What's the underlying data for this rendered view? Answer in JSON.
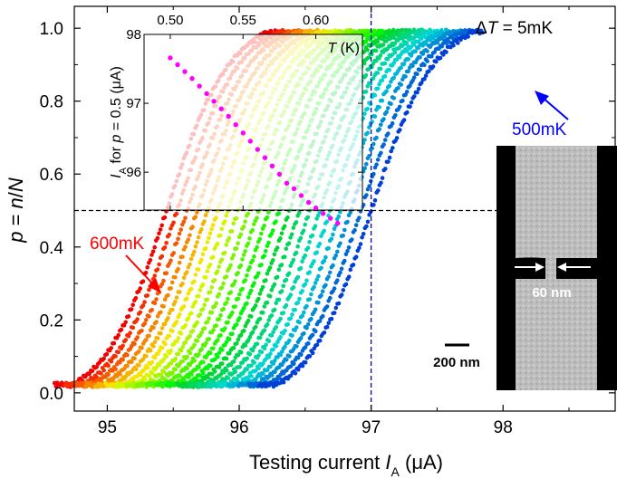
{
  "chart_data": {
    "type": "scatter",
    "xlabel": "Testing current I_A (μA)",
    "xlabel_main": "Testing current ",
    "xlabel_var": "I",
    "xlabel_sub": "A",
    "xlabel_unit": " (μA)",
    "ylabel": "p = n/N",
    "ylabel_p": "p",
    "ylabel_eq": " = ",
    "ylabel_n": "n",
    "ylabel_slash": "/",
    "ylabel_N": "N",
    "xlim": [
      94.75,
      98.85
    ],
    "ylim": [
      -0.05,
      1.06
    ],
    "x_ticks": [
      95,
      96,
      97,
      98
    ],
    "x_tick_labels": [
      "95",
      "96",
      "97",
      "98"
    ],
    "y_ticks": [
      0.0,
      0.2,
      0.4,
      0.6,
      0.8,
      1.0
    ],
    "y_tick_labels": [
      "0.0",
      "0.2",
      "0.4",
      "0.6",
      "0.8",
      "1.0"
    ],
    "series_count": 21,
    "series_first_temperature_label": "600mK",
    "series_last_temperature_label": "500mK",
    "half_current_start_uA": 95.45,
    "half_current_step_uA": 0.0775,
    "curve_width_uA": 0.24,
    "reference_lines": {
      "vertical_x": 97.0,
      "horizontal_y": 0.5
    },
    "annotations": {
      "delta_t_prefix": "Δ",
      "delta_t_var": "T",
      "delta_t_value": " = 5mK",
      "label_600": "600mK",
      "label_500": "500mK",
      "sem_width_label": "60 nm",
      "scale_bar_label": "200 nm"
    },
    "inset": {
      "type": "scatter",
      "xlabel": "T (K)",
      "xlabel_var": "T",
      "xlabel_unit": " (K)",
      "ylabel": "I_A for p = 0.5 (μA)",
      "ylabel_var": "I",
      "ylabel_sub": "A",
      "ylabel_for": " for ",
      "ylabel_p": "p",
      "ylabel_rest": " = 0.5 (μA)",
      "xlim": [
        0.482,
        0.632
      ],
      "ylim": [
        95.45,
        98.0
      ],
      "x_ticks": [
        0.5,
        0.55,
        0.6
      ],
      "x_tick_labels": [
        "0.50",
        "0.55",
        "0.60"
      ],
      "y_ticks": [
        96,
        97,
        98
      ],
      "y_tick_labels": [
        "96",
        "97",
        "98"
      ],
      "x": [
        0.5,
        0.505,
        0.51,
        0.515,
        0.52,
        0.525,
        0.53,
        0.535,
        0.54,
        0.545,
        0.55,
        0.555,
        0.56,
        0.565,
        0.57,
        0.575,
        0.58,
        0.585,
        0.59,
        0.595,
        0.6,
        0.605,
        0.61,
        0.615
      ],
      "y": [
        97.66,
        97.56,
        97.46,
        97.36,
        97.25,
        97.14,
        97.03,
        96.92,
        96.81,
        96.69,
        96.57,
        96.45,
        96.33,
        96.21,
        96.09,
        95.97,
        95.84,
        95.76,
        95.66,
        95.56,
        95.48,
        95.4,
        95.33,
        95.26
      ],
      "color": "#ff00ff"
    }
  }
}
